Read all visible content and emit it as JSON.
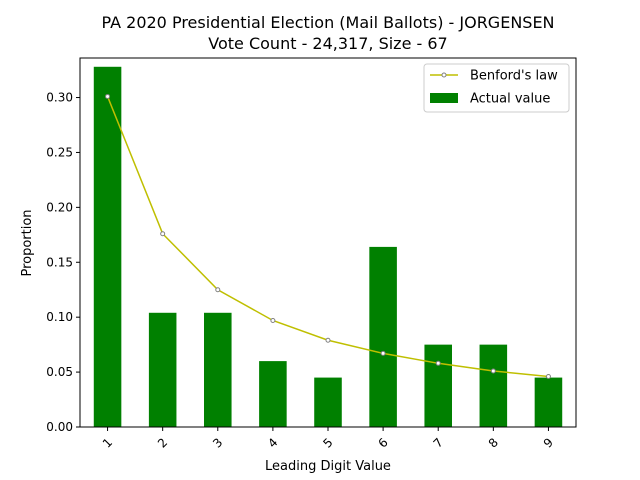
{
  "chart_data": {
    "type": "bar",
    "title": "PA 2020 Presidential Election (Mail Ballots) - JORGENSEN",
    "subtitle": "Vote Count - 24,317, Size - 67",
    "xlabel": "Leading Digit Value",
    "ylabel": "Proportion",
    "categories": [
      "1",
      "2",
      "3",
      "4",
      "5",
      "6",
      "7",
      "8",
      "9"
    ],
    "ylim": [
      0,
      0.336
    ],
    "yticks": [
      0.0,
      0.05,
      0.1,
      0.15,
      0.2,
      0.25,
      0.3
    ],
    "ytick_labels": [
      "0.00",
      "0.05",
      "0.10",
      "0.15",
      "0.20",
      "0.25",
      "0.30"
    ],
    "grid": false,
    "legend_position": "top-right",
    "series": [
      {
        "name": "Benford's law",
        "kind": "line",
        "color": "#bfbf00",
        "marker_face": "#ffffff",
        "marker_edge": "#808080",
        "values": [
          0.301,
          0.176,
          0.125,
          0.097,
          0.079,
          0.067,
          0.058,
          0.051,
          0.046
        ]
      },
      {
        "name": "Actual value",
        "kind": "bar",
        "color": "#008000",
        "values": [
          0.328,
          0.104,
          0.104,
          0.06,
          0.045,
          0.164,
          0.075,
          0.075,
          0.045
        ]
      }
    ]
  }
}
